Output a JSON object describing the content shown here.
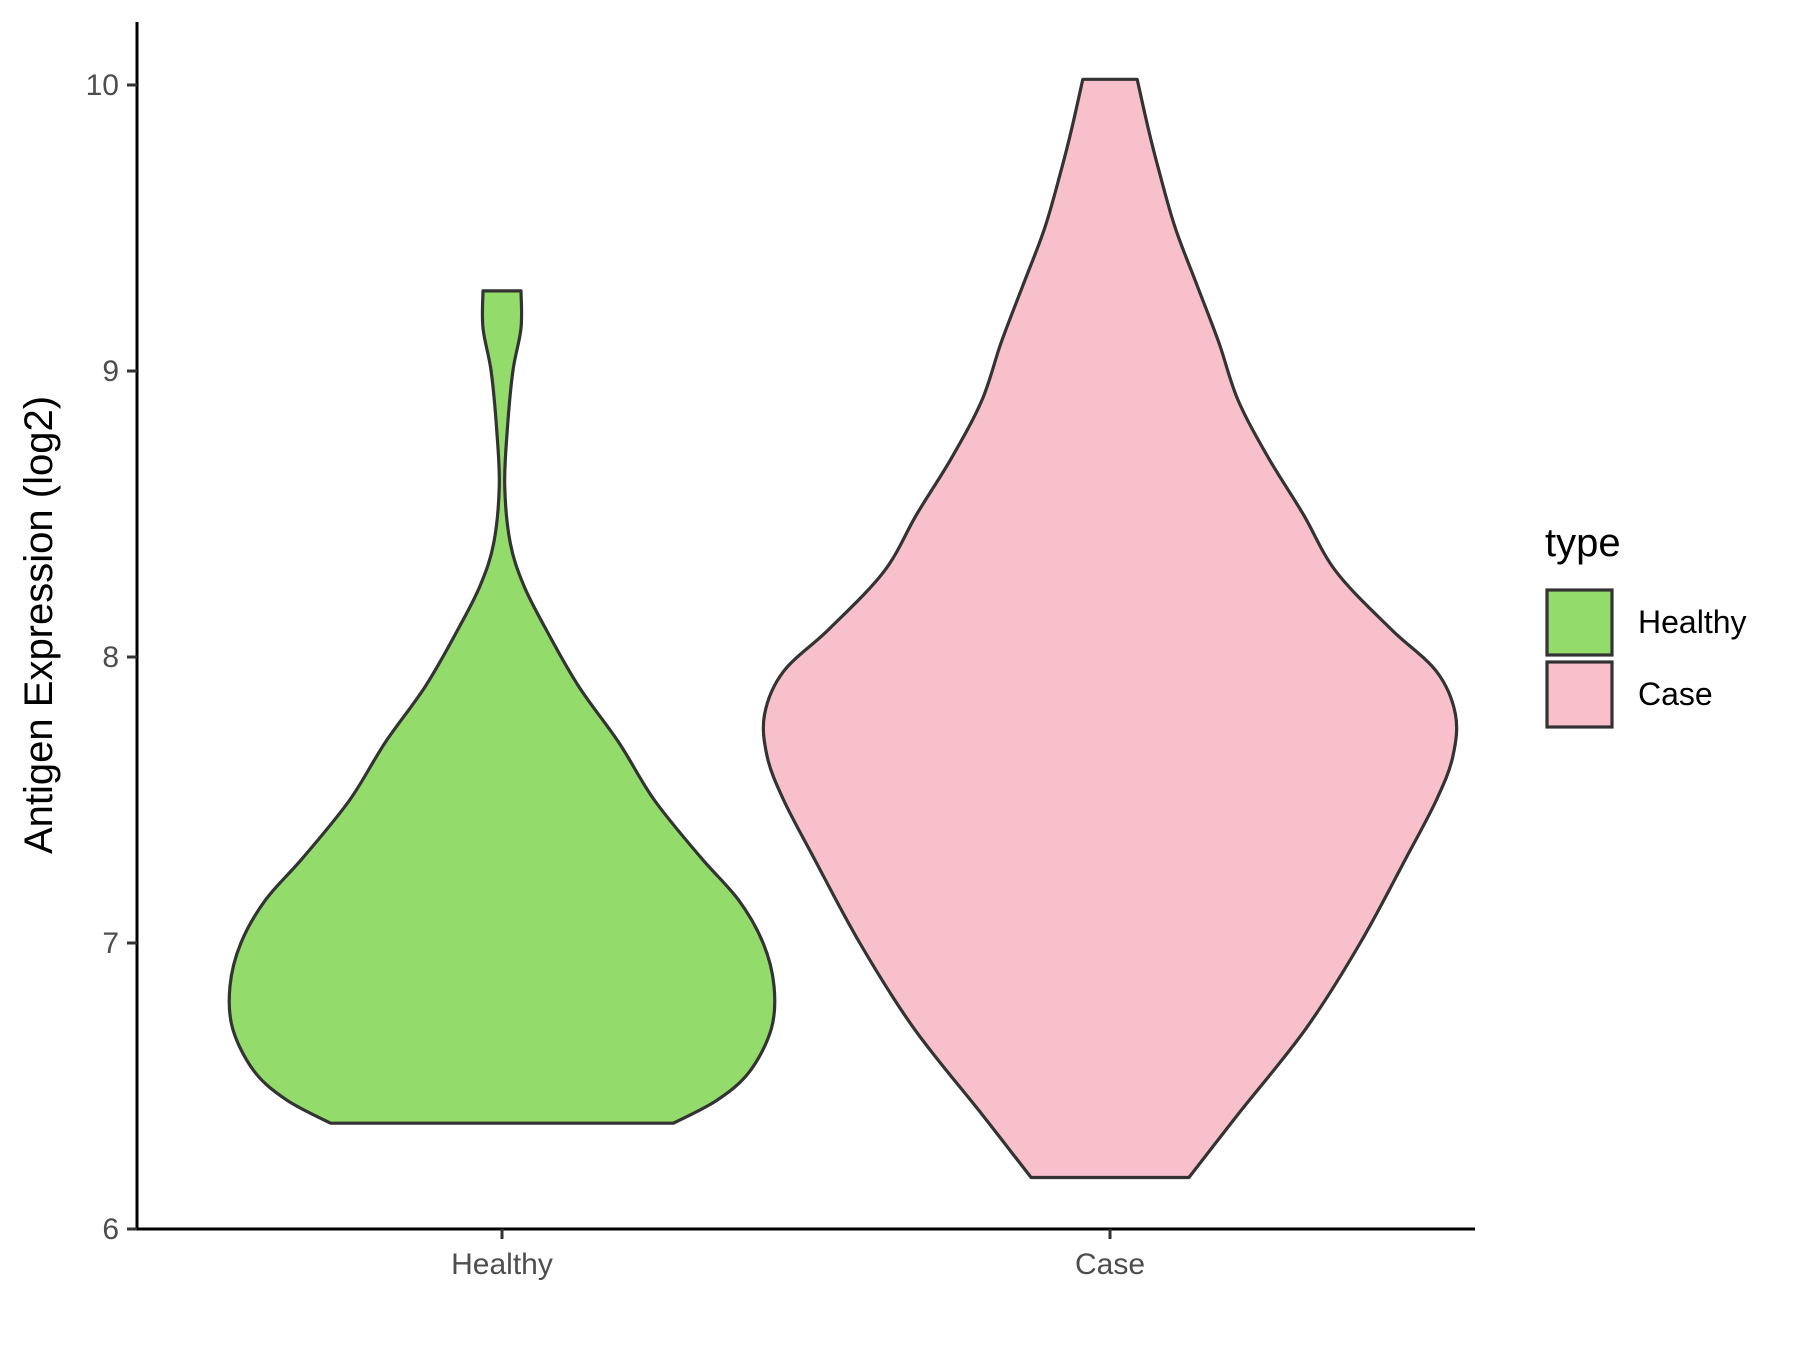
{
  "chart_data": {
    "type": "violin",
    "title": "",
    "xlabel": "",
    "ylabel": "Antigen Expression (log2)",
    "ylim": [
      6,
      10.2
    ],
    "yticks": [
      6,
      7,
      8,
      9,
      10
    ],
    "categories": [
      "Healthy",
      "Case"
    ],
    "grid": false,
    "legend": {
      "title": "type",
      "position": "right",
      "entries": [
        {
          "label": "Healthy",
          "color": "#93DC6B"
        },
        {
          "label": "Case",
          "color": "#F7C0CB"
        }
      ]
    },
    "series": [
      {
        "category": "Healthy",
        "color": "#93DC6B",
        "min": 6.37,
        "max": 9.28,
        "density_profile": [
          [
            6.37,
            0.63
          ],
          [
            6.45,
            0.79
          ],
          [
            6.55,
            0.91
          ],
          [
            6.7,
            0.99
          ],
          [
            6.85,
            1.0
          ],
          [
            7.0,
            0.96
          ],
          [
            7.15,
            0.87
          ],
          [
            7.3,
            0.73
          ],
          [
            7.5,
            0.56
          ],
          [
            7.7,
            0.43
          ],
          [
            7.9,
            0.28
          ],
          [
            8.1,
            0.16
          ],
          [
            8.25,
            0.08
          ],
          [
            8.4,
            0.03
          ],
          [
            8.6,
            0.01
          ],
          [
            8.8,
            0.02
          ],
          [
            9.0,
            0.04
          ],
          [
            9.15,
            0.07
          ],
          [
            9.28,
            0.07
          ]
        ]
      },
      {
        "category": "Case",
        "color": "#F7C0CB",
        "min": 6.18,
        "max": 10.02,
        "density_profile": [
          [
            6.18,
            0.29
          ],
          [
            6.4,
            0.47
          ],
          [
            6.7,
            0.72
          ],
          [
            7.0,
            0.92
          ],
          [
            7.3,
            1.09
          ],
          [
            7.5,
            1.2
          ],
          [
            7.65,
            1.26
          ],
          [
            7.8,
            1.27
          ],
          [
            7.95,
            1.2
          ],
          [
            8.1,
            1.03
          ],
          [
            8.3,
            0.83
          ],
          [
            8.5,
            0.71
          ],
          [
            8.7,
            0.58
          ],
          [
            8.9,
            0.47
          ],
          [
            9.1,
            0.4
          ],
          [
            9.3,
            0.32
          ],
          [
            9.5,
            0.24
          ],
          [
            9.7,
            0.18
          ],
          [
            9.85,
            0.14
          ],
          [
            10.02,
            0.1
          ]
        ]
      }
    ]
  }
}
